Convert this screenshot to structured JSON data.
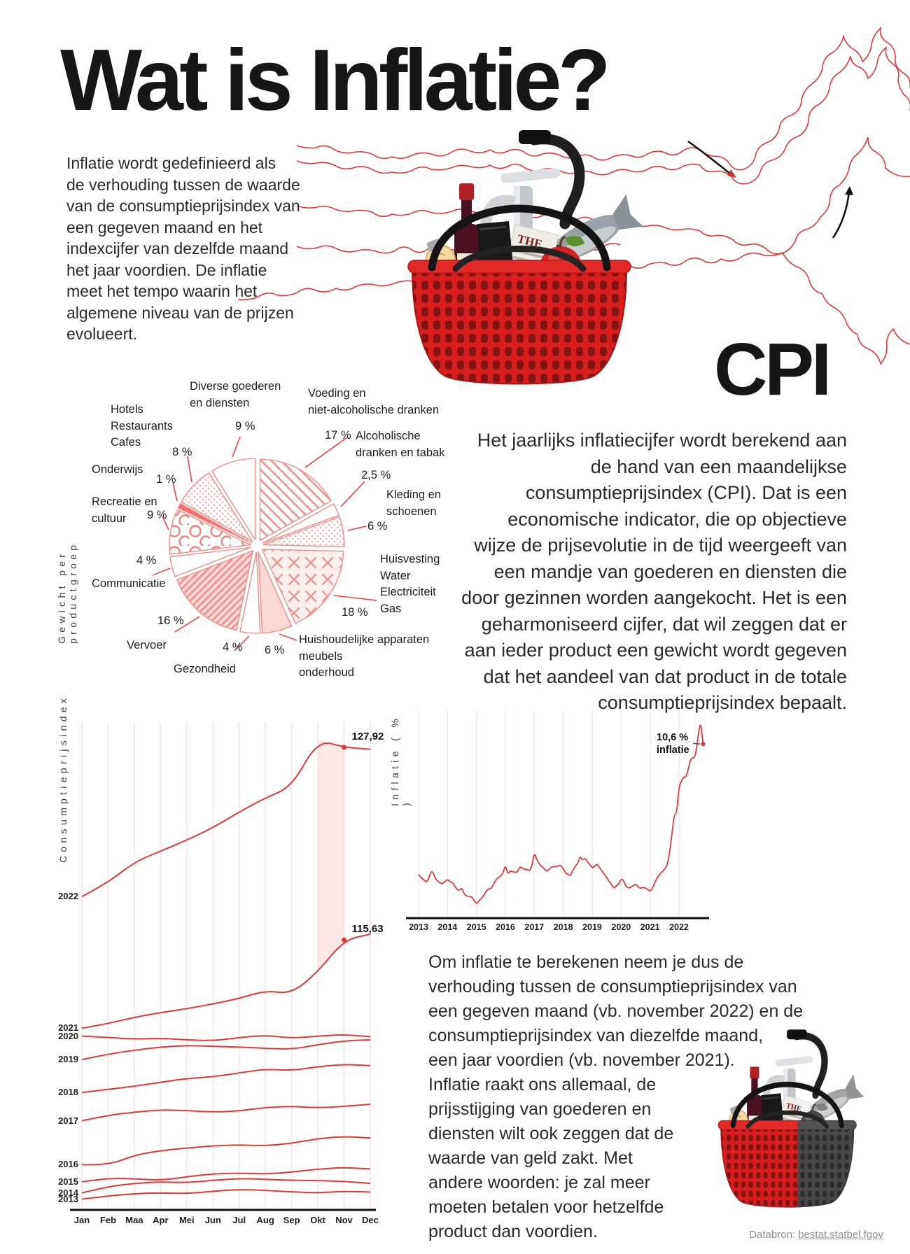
{
  "page": {
    "title": "Wat is Inflatie?",
    "intro": "Inflatie wordt gedefinieerd als\nde verhouding tussen de waarde\nvan de consumptieprijsindex van\neen gegeven maand en het\nindexcijfer van dezelfde maand\nhet jaar voordien. De inflatie\nmeet het tempo waarin het\nalgemene niveau van de prijzen\nevolueert.",
    "cpi_heading": "CPI",
    "cpi_paragraph": "Het jaarlijks inflatiecijfer wordt berekend aan\nde hand van een maandelijkse\nconsumptieprijsindex (CPI). Dat is een\neconomische indicator, die op objectieve\nwijze de prijsevolutie in de tijd weergeeft van\neen mandje van goederen en diensten die\ndoor gezinnen worden aangekocht. Het is een\ngeharmoniseerd cijfer, dat wil zeggen dat er\naan ieder product een gewicht wordt gegeven\ndat het aandeel van dat product in de totale\nconsumptieprijsindex bepaalt.",
    "calc_paragraph": "Om inflatie te berekenen neem je dus de\nverhouding tussen de consumptieprijsindex van\neen gegeven maand (vb. november 2022) en de\nconsumptieprijsindex van diezelfde maand,\neen jaar voordien (vb. november 2021).",
    "impact_paragraph": "Inflatie raakt ons allemaal, de\nprijsstijging van goederen en\ndiensten wilt ook zeggen dat de\nwaarde van geld zakt. Met\nandere woorden: je zal meer\nmoeten betalen voor hetzelfde\nproduct dan voordien.",
    "source_label": "Databron:",
    "source_link": "bestat.statbel.fgov"
  },
  "icons": {
    "basket_top": "shopping-basket-full-illustration",
    "basket_bottom": "shopping-basket-half-gray-illustration",
    "arrow_down": "trend-arrow-down-icon",
    "arrow_up": "trend-arrow-up-icon"
  },
  "colors": {
    "accent_red": "#e0393b",
    "soft_pink": "#fbd9d9",
    "grid_pink": "#fbe7e7",
    "text_black": "#1d1d1b",
    "source_gray": "#8f8f8f"
  },
  "chart_data": [
    {
      "type": "pie",
      "axis_label": "Gewicht per productgroep",
      "unit": "%",
      "slices": [
        {
          "id": "voeding",
          "label": "Voeding en\nniet-alcoholische dranken",
          "pct": "17 %",
          "value": 17
        },
        {
          "id": "alcohol",
          "label": "Alcoholische\ndranken en tabak",
          "pct": "2,5 %",
          "value": 2.5
        },
        {
          "id": "kleding",
          "label": "Kleding en\nschoenen",
          "pct": "6 %",
          "value": 6
        },
        {
          "id": "huisvesting",
          "label": "Huisvesting\nWater\nElectriciteit\nGas",
          "pct": "18 %",
          "value": 18
        },
        {
          "id": "huishoudelijk",
          "label": "Huishoudelijke apparaten\nmeubels\nonderhoud",
          "pct": "6 %",
          "value": 6
        },
        {
          "id": "gezondheid",
          "label": "Gezondheid",
          "pct": "4 %",
          "value": 4
        },
        {
          "id": "vervoer",
          "label": "Vervoer",
          "pct": "16 %",
          "value": 16
        },
        {
          "id": "communicatie",
          "label": "Communicatie",
          "pct": "4 %",
          "value": 4
        },
        {
          "id": "recreatie",
          "label": "Recreatie en\ncultuur",
          "pct": "9 %",
          "value": 9
        },
        {
          "id": "onderwijs",
          "label": "Onderwijs",
          "pct": "1 %",
          "value": 1
        },
        {
          "id": "horeca",
          "label": "Hotels\nRestaurants\nCafes",
          "pct": "8 %",
          "value": 8
        },
        {
          "id": "diverse",
          "label": "Diverse goederen\nen diensten",
          "pct": "9 %",
          "value": 9
        }
      ]
    },
    {
      "type": "line",
      "axis_label": "Consumptieprijsindex",
      "x_categories": [
        "Jan",
        "Feb",
        "Maa",
        "Apr",
        "Mei",
        "Jun",
        "Jul",
        "Aug",
        "Sep",
        "Okt",
        "Nov",
        "Dec"
      ],
      "ylim": [
        98.5,
        129.5
      ],
      "series": [
        {
          "name": "2013",
          "values": [
            99.1,
            99.3,
            99.45,
            99.5,
            99.45,
            99.6,
            99.72,
            99.66,
            99.56,
            99.5,
            99.6,
            99.55
          ]
        },
        {
          "name": "2014",
          "values": [
            99.5,
            99.9,
            100.1,
            100.2,
            100.15,
            100.3,
            100.42,
            100.36,
            100.3,
            100.28,
            100.24,
            100.1
          ]
        },
        {
          "name": "2015",
          "values": [
            100.2,
            100.45,
            100.4,
            100.3,
            100.52,
            100.72,
            100.76,
            100.7,
            100.82,
            101.02,
            101.12,
            101.02
          ]
        },
        {
          "name": "2016",
          "values": [
            101.3,
            101.26,
            101.9,
            102.2,
            102.36,
            102.5,
            102.56,
            102.5,
            102.66,
            102.96,
            103.1,
            103.0
          ]
        },
        {
          "name": "2017",
          "values": [
            104.1,
            104.45,
            104.65,
            104.8,
            104.75,
            104.65,
            104.72,
            104.95,
            105.02,
            104.92,
            105.02,
            105.15
          ]
        },
        {
          "name": "2018",
          "values": [
            105.9,
            106.1,
            106.3,
            106.55,
            106.8,
            106.9,
            107.15,
            107.4,
            107.3,
            107.55,
            107.7,
            107.62
          ]
        },
        {
          "name": "2019",
          "values": [
            108.0,
            108.35,
            108.6,
            108.8,
            108.9,
            108.85,
            108.8,
            108.72,
            108.66,
            108.95,
            109.2,
            109.26
          ]
        },
        {
          "name": "2020",
          "values": [
            109.5,
            109.42,
            109.3,
            109.36,
            109.26,
            109.2,
            109.4,
            109.56,
            109.36,
            109.5,
            109.6,
            109.46
          ]
        },
        {
          "name": "2021",
          "values": [
            110.0,
            110.3,
            110.7,
            111.0,
            111.25,
            111.55,
            111.9,
            112.4,
            112.2,
            113.6,
            115.63,
            116.0
          ]
        },
        {
          "name": "2022",
          "values": [
            118.4,
            119.3,
            120.6,
            121.3,
            122.0,
            122.8,
            123.8,
            124.7,
            125.4,
            128.4,
            127.92,
            127.8
          ]
        }
      ],
      "annotations": [
        {
          "series": "2022",
          "month": "Nov",
          "text": "127,92",
          "value": 127.92
        },
        {
          "series": "2021",
          "month": "Nov",
          "text": "115,63",
          "value": 115.63
        }
      ],
      "highlight_band": {
        "from": "Okt",
        "to": "Nov",
        "between": [
          "2022",
          "2021"
        ]
      }
    },
    {
      "type": "line",
      "axis_label": "Inflatie ( % )",
      "x_ticks": [
        "2013",
        "2014",
        "2015",
        "2016",
        "2017",
        "2018",
        "2019",
        "2020",
        "2021",
        "2022"
      ],
      "ylim": [
        -1.7,
        13
      ],
      "monthly_values": [
        1.46,
        1.2,
        1.11,
        0.91,
        1.05,
        1.64,
        1.62,
        1.12,
        0.98,
        0.83,
        0.81,
        0.97,
        1.1,
        0.94,
        0.89,
        0.64,
        0.36,
        0.34,
        0.51,
        0.02,
        -0.06,
        -0.13,
        -0.11,
        -0.38,
        -0.65,
        -0.4,
        -0.26,
        -0.05,
        0.27,
        0.43,
        0.45,
        0.73,
        1.06,
        1.22,
        1.35,
        1.5,
        2.15,
        1.45,
        1.7,
        1.65,
        1.6,
        1.62,
        2.0,
        1.9,
        1.8,
        1.8,
        1.7,
        2.03,
        3.0,
        2.5,
        2.2,
        2.0,
        1.9,
        1.65,
        1.8,
        1.95,
        2.0,
        2.0,
        2.05,
        2.1,
        1.85,
        1.55,
        1.45,
        1.35,
        1.75,
        2.05,
        2.2,
        2.75,
        2.45,
        2.6,
        2.35,
        2.15,
        1.9,
        2.0,
        2.2,
        1.95,
        1.7,
        1.45,
        1.25,
        0.95,
        0.75,
        0.45,
        0.65,
        0.75,
        1.15,
        1.05,
        0.6,
        0.5,
        0.55,
        0.65,
        0.8,
        0.6,
        0.45,
        0.55,
        0.5,
        0.4,
        0.26,
        0.46,
        0.89,
        1.23,
        1.46,
        1.63,
        1.81,
        2.02,
        2.86,
        4.16,
        5.64,
        5.71,
        7.59,
        8.04,
        8.31,
        8.31,
        8.97,
        9.65,
        9.62,
        9.94,
        11.27,
        12.27,
        10.63
      ],
      "annotation": {
        "text": "10,6 %\ninflatie",
        "value": 10.63
      }
    }
  ]
}
